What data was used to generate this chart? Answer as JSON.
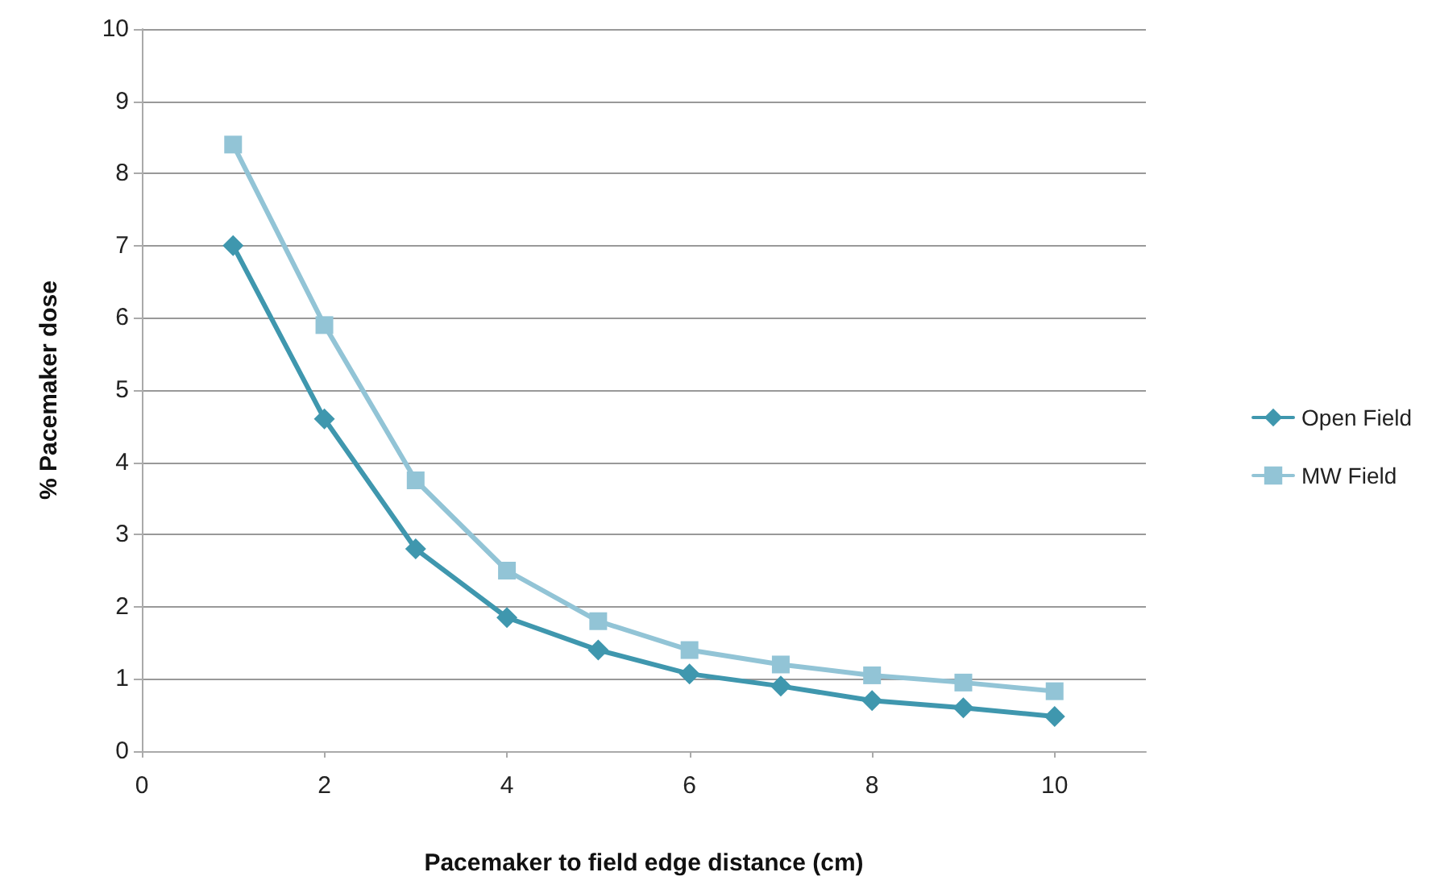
{
  "chart_data": {
    "type": "line",
    "xlabel": "Pacemaker to field edge distance (cm)",
    "ylabel": "% Pacemaker dose",
    "x": [
      1,
      2,
      3,
      4,
      5,
      6,
      7,
      8,
      9,
      10
    ],
    "series": [
      {
        "name": "Open Field",
        "color": "#3f97ae",
        "marker": "diamond",
        "values": [
          7,
          4.6,
          2.8,
          1.85,
          1.4,
          1.07,
          0.9,
          0.7,
          0.6,
          0.48
        ]
      },
      {
        "name": "MW Field",
        "color": "#92c4d6",
        "marker": "square",
        "values": [
          8.4,
          5.9,
          3.75,
          2.5,
          1.8,
          1.4,
          1.2,
          1.05,
          0.95,
          0.83
        ]
      }
    ],
    "xlim": [
      0,
      11
    ],
    "xticks": [
      0,
      2,
      4,
      6,
      8,
      10
    ],
    "ylim": [
      0,
      10
    ],
    "yticks": [
      0,
      1,
      2,
      3,
      4,
      5,
      6,
      7,
      8,
      9,
      10
    ],
    "grid": "y",
    "legend": "right",
    "line_style": "solid"
  }
}
